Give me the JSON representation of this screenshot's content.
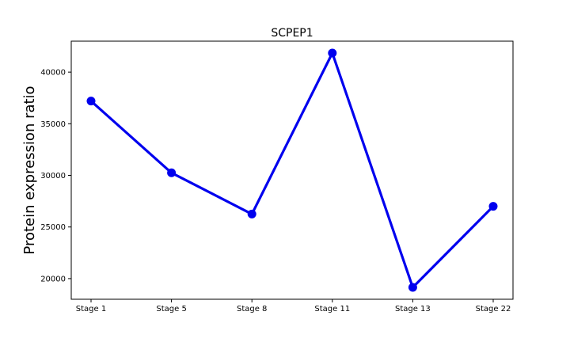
{
  "chart_data": {
    "type": "line",
    "title": "SCPEP1",
    "xlabel": "",
    "ylabel": "Protein expression ratio",
    "categories": [
      "Stage 1",
      "Stage 5",
      "Stage 8",
      "Stage 11",
      "Stage 13",
      "Stage 22"
    ],
    "series": [
      {
        "values": [
          37200,
          30250,
          26250,
          41850,
          19150,
          27000
        ]
      }
    ],
    "ylim": [
      18000,
      43000
    ],
    "yticks": [
      20000,
      25000,
      30000,
      35000,
      40000
    ],
    "grid": false,
    "colors": {
      "line": "#0000ee",
      "marker": "#0000ee",
      "frame": "#000000"
    }
  }
}
